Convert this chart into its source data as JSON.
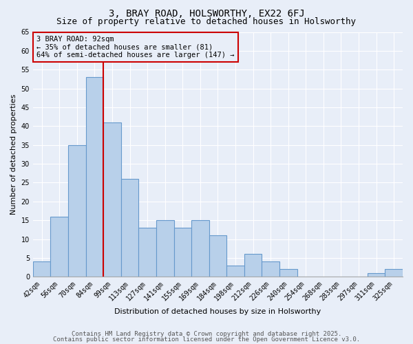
{
  "title": "3, BRAY ROAD, HOLSWORTHY, EX22 6FJ",
  "subtitle": "Size of property relative to detached houses in Holsworthy",
  "xlabel": "Distribution of detached houses by size in Holsworthy",
  "ylabel": "Number of detached properties",
  "categories": [
    "42sqm",
    "56sqm",
    "70sqm",
    "84sqm",
    "99sqm",
    "113sqm",
    "127sqm",
    "141sqm",
    "155sqm",
    "169sqm",
    "184sqm",
    "198sqm",
    "212sqm",
    "226sqm",
    "240sqm",
    "254sqm",
    "268sqm",
    "283sqm",
    "297sqm",
    "311sqm",
    "325sqm"
  ],
  "values": [
    4,
    16,
    35,
    53,
    41,
    26,
    13,
    15,
    13,
    15,
    11,
    3,
    6,
    4,
    2,
    0,
    0,
    0,
    0,
    1,
    2
  ],
  "bar_color": "#b8d0ea",
  "bar_edgecolor": "#6699cc",
  "ylim": [
    0,
    65
  ],
  "yticks": [
    0,
    5,
    10,
    15,
    20,
    25,
    30,
    35,
    40,
    45,
    50,
    55,
    60,
    65
  ],
  "vline_x": 3.5,
  "vline_color": "#cc0000",
  "annotation_text": "3 BRAY ROAD: 92sqm\n← 35% of detached houses are smaller (81)\n64% of semi-detached houses are larger (147) →",
  "footnote1": "Contains HM Land Registry data © Crown copyright and database right 2025.",
  "footnote2": "Contains public sector information licensed under the Open Government Licence v3.0.",
  "background_color": "#e8eef8",
  "grid_color": "#ffffff",
  "title_fontsize": 10,
  "subtitle_fontsize": 9,
  "axis_label_fontsize": 8,
  "tick_fontsize": 7,
  "annotation_fontsize": 7.5,
  "footnote_fontsize": 6.5
}
